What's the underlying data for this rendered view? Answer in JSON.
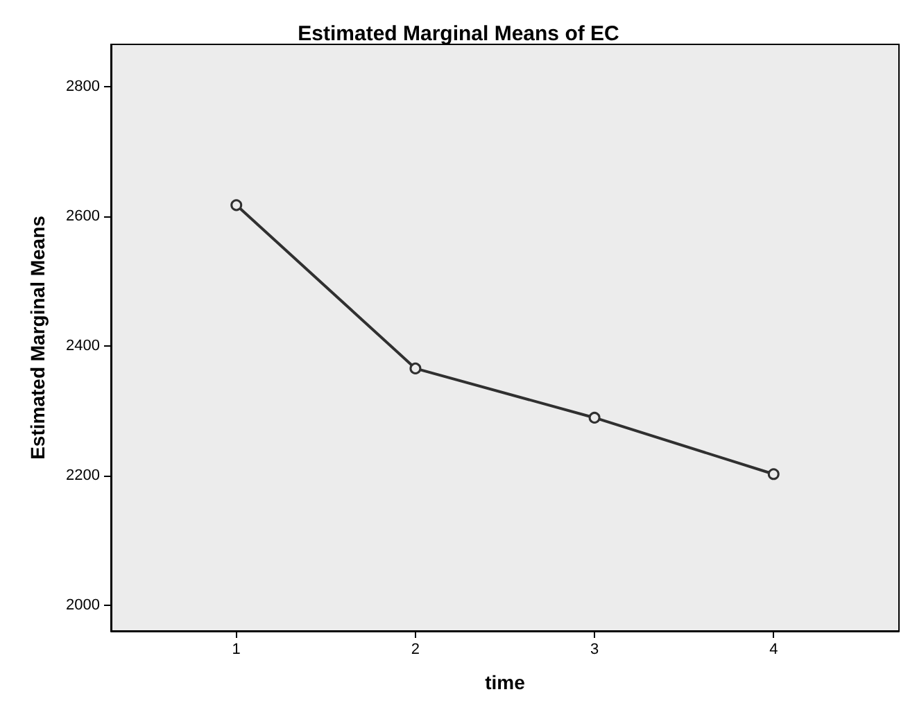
{
  "chart_data": {
    "type": "line",
    "title": "Estimated Marginal Means of EC",
    "xlabel": "time",
    "ylabel": "Estimated Marginal Means",
    "x": [
      1,
      2,
      3,
      4
    ],
    "series": [
      {
        "color": "#303030",
        "values": [
          2617,
          2365,
          2289,
          2202
        ]
      }
    ],
    "xlim": [
      0.3,
      4.7
    ],
    "xticks": [
      1,
      2,
      3,
      4
    ],
    "ylim": [
      1960,
      2865
    ],
    "yticks": [
      2000,
      2200,
      2400,
      2600,
      2800
    ],
    "grid": false,
    "marker": "circle",
    "line_style": "solid"
  }
}
